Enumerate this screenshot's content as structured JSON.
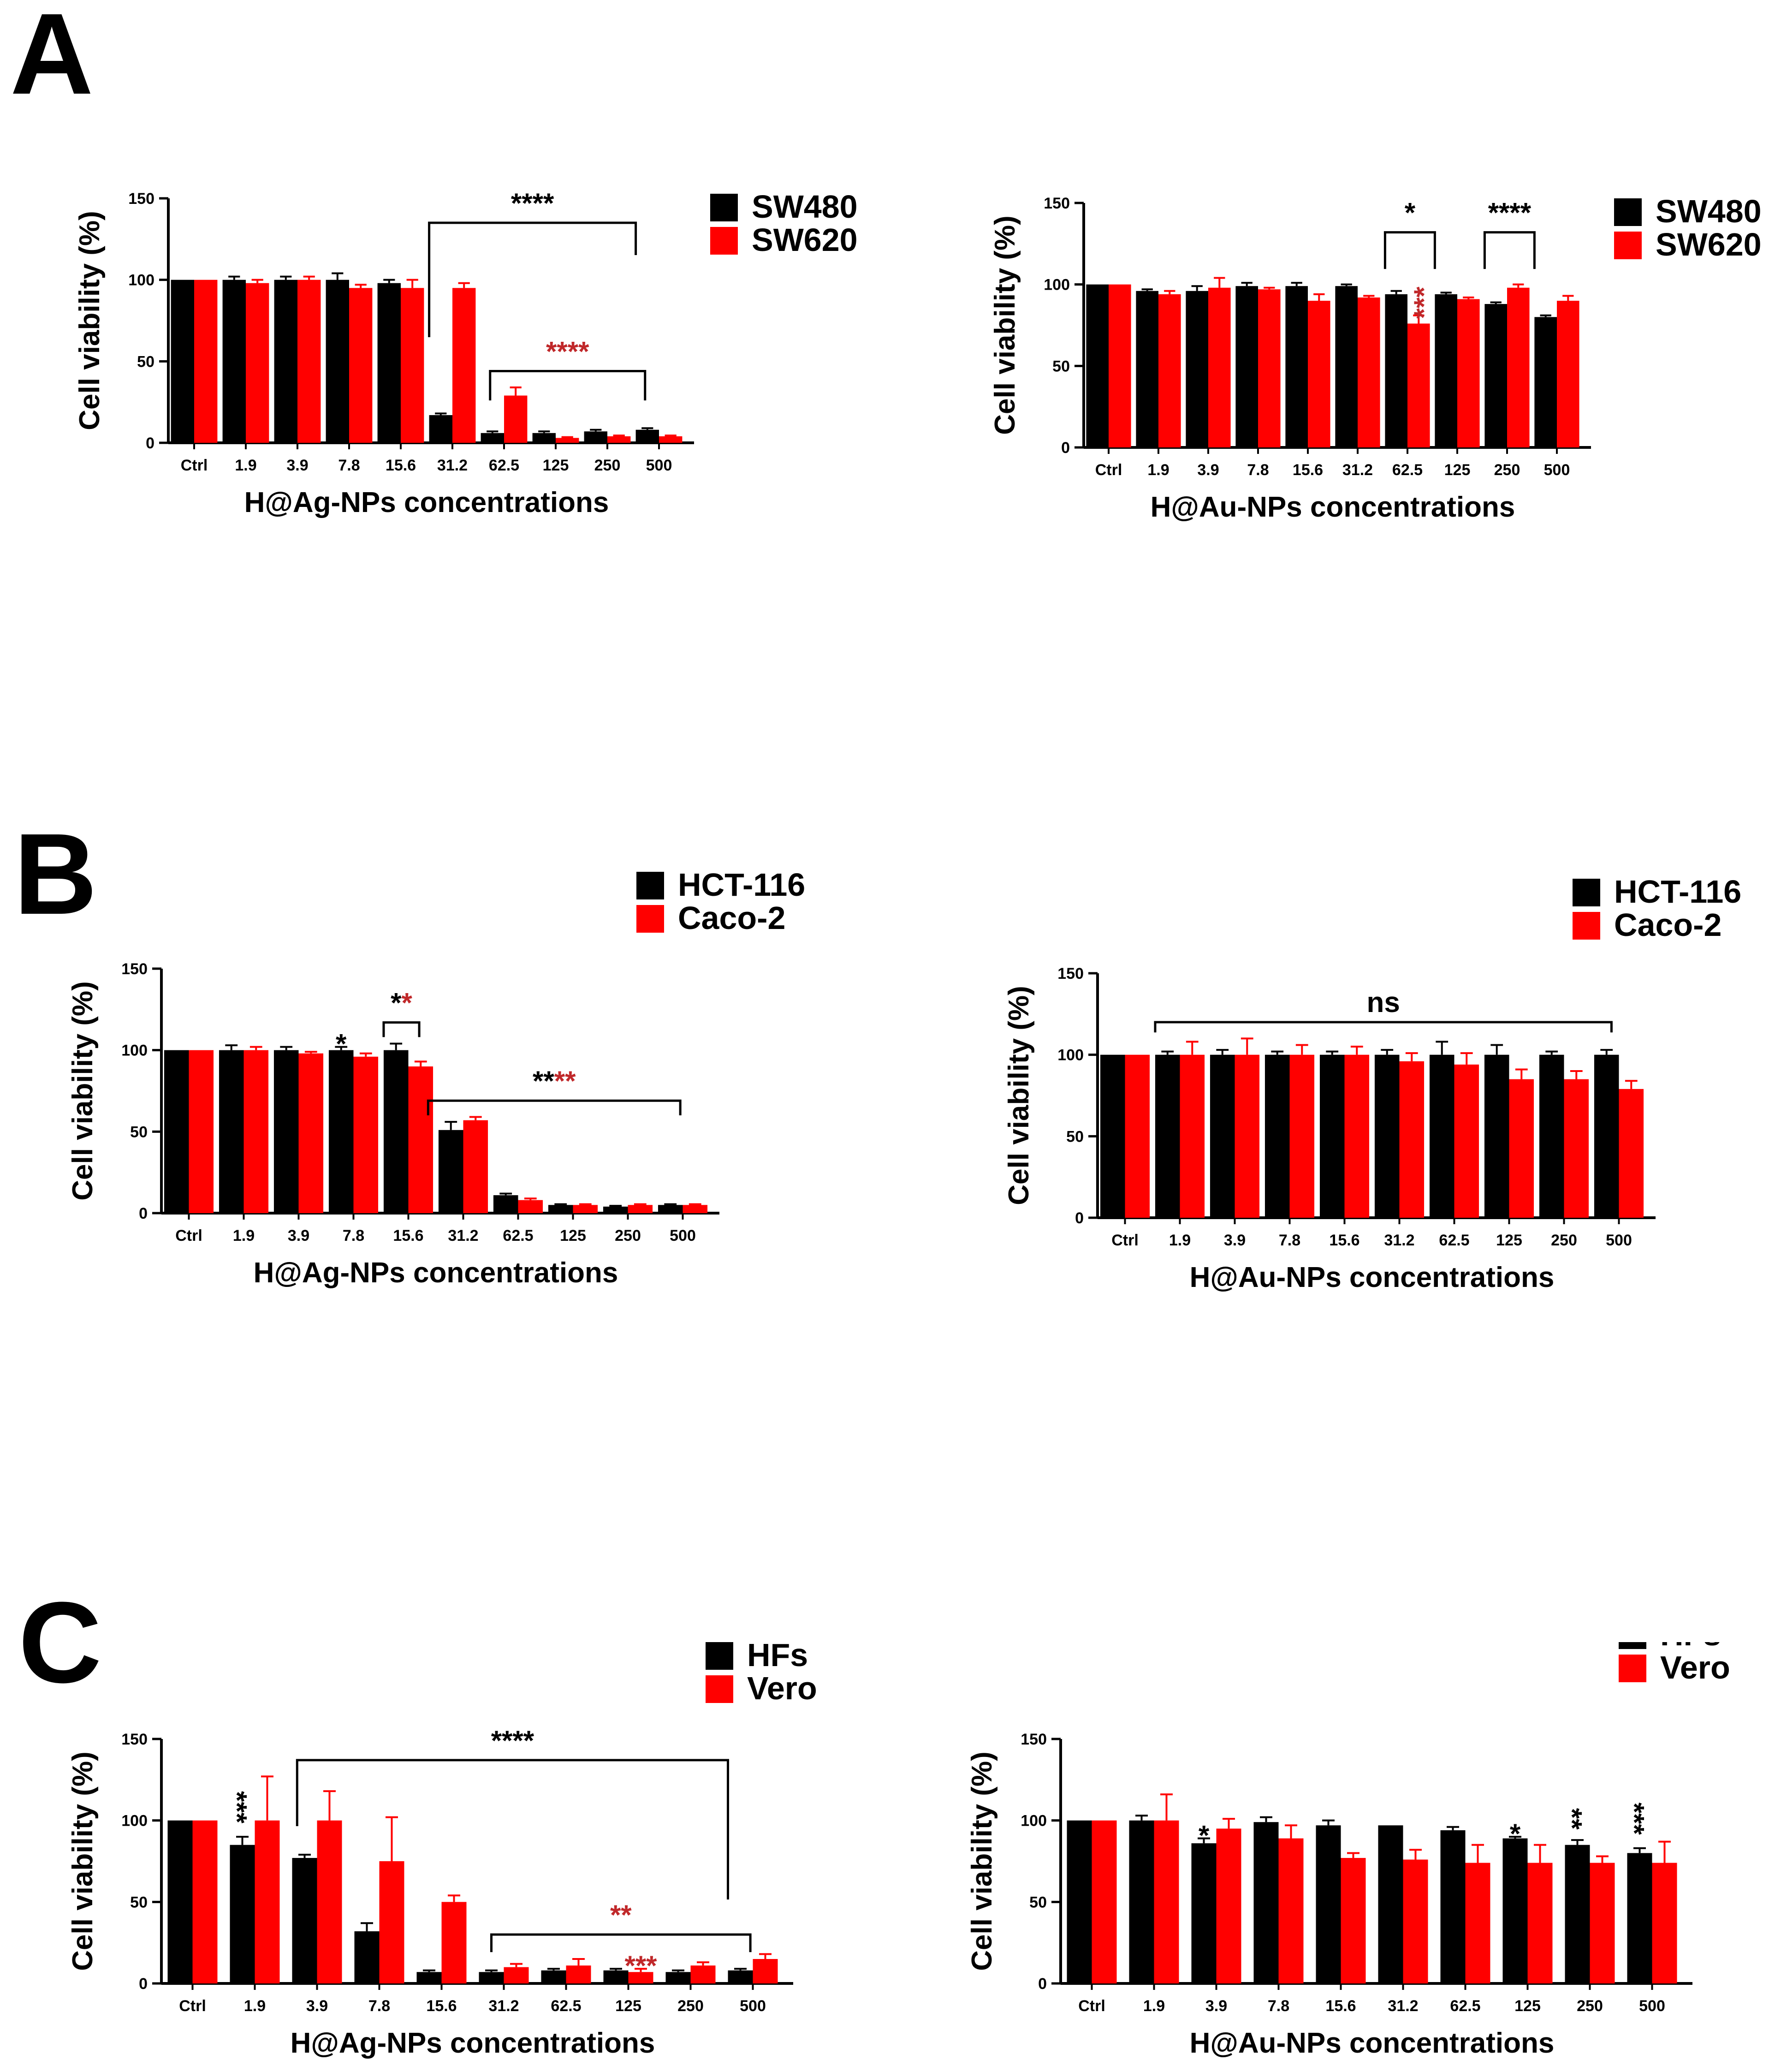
{
  "figure": {
    "panel_letters": [
      "A",
      "B",
      "C"
    ],
    "colors": {
      "series1": "#000000",
      "series2": "#ff0000",
      "sig_red": "#c0282a",
      "axis": "#000000"
    }
  },
  "chart_data": [
    {
      "type": "bar",
      "panel": "A",
      "position": "left",
      "title": "",
      "xlabel": "H@Ag-NPs concentrations",
      "ylabel": "Cell viability (%)",
      "ylim": [
        0,
        150
      ],
      "yticks": [
        0,
        50,
        100,
        150
      ],
      "categories": [
        "Ctrl",
        "1.9",
        "3.9",
        "7.8",
        "15.6",
        "31.2",
        "62.5",
        "125",
        "250",
        "500"
      ],
      "series": [
        {
          "name": "SW480",
          "color": "#000000",
          "values": [
            100,
            100,
            100,
            100,
            98,
            17,
            6,
            6,
            7,
            8
          ],
          "errors": [
            0,
            2,
            2,
            4,
            2,
            1,
            1,
            1,
            1,
            1
          ]
        },
        {
          "name": "SW620",
          "color": "#ff0000",
          "values": [
            100,
            98,
            100,
            95,
            95,
            95,
            29,
            3,
            4,
            4
          ],
          "errors": [
            0,
            2,
            2,
            2,
            5,
            3,
            5,
            0.5,
            0.5,
            0.5
          ]
        }
      ],
      "annotations": [
        {
          "type": "bracket",
          "text": "****",
          "color": "black",
          "from": 5,
          "to": 9,
          "level": 135,
          "drop_left": 0.78,
          "drop_right": 0.22
        },
        {
          "type": "bracket",
          "text": "****",
          "color": "red",
          "from": 6.2,
          "to": 9.2,
          "level": 44,
          "drop_left": 0.2,
          "drop_right": 0.2
        }
      ]
    },
    {
      "type": "bar",
      "panel": "A",
      "position": "right",
      "title": "",
      "xlabel": "H@Au-NPs concentrations",
      "ylabel": "Cell viability (%)",
      "ylim": [
        0,
        150
      ],
      "yticks": [
        0,
        50,
        100,
        150
      ],
      "categories": [
        "Ctrl",
        "1.9",
        "3.9",
        "7.8",
        "15.6",
        "31.2",
        "62.5",
        "125",
        "250",
        "500"
      ],
      "series": [
        {
          "name": "SW480",
          "color": "#000000",
          "values": [
            100,
            96,
            96,
            99,
            99,
            99,
            94,
            94,
            88,
            80
          ],
          "errors": [
            0,
            1,
            3,
            2,
            2,
            1,
            2,
            1,
            1,
            1
          ]
        },
        {
          "name": "SW620",
          "color": "#ff0000",
          "values": [
            100,
            94,
            98,
            97,
            90,
            92,
            76,
            91,
            98,
            90
          ],
          "errors": [
            0,
            2,
            6,
            1,
            4,
            1,
            5,
            1,
            2,
            3
          ]
        }
      ],
      "annotations": [
        {
          "type": "bracket",
          "text": "*",
          "color": "black",
          "from": 6,
          "to": 7,
          "level": 132,
          "drop_left": 0.25,
          "drop_right": 0.25
        },
        {
          "type": "bracket",
          "text": "****",
          "color": "black",
          "from": 8,
          "to": 9,
          "level": 132,
          "drop_left": 0.25,
          "drop_right": 0.25
        },
        {
          "type": "star",
          "text": "***",
          "color": "red",
          "group": 6,
          "series": 1,
          "rotate": -90
        }
      ]
    },
    {
      "type": "bar",
      "panel": "B",
      "position": "left",
      "title": "",
      "xlabel": "H@Ag-NPs concentrations",
      "ylabel": "Cell viability (%)",
      "ylim": [
        0,
        150
      ],
      "yticks": [
        0,
        50,
        100,
        150
      ],
      "categories": [
        "Ctrl",
        "1.9",
        "3.9",
        "7.8",
        "15.6",
        "31.2",
        "62.5",
        "125",
        "250",
        "500"
      ],
      "series": [
        {
          "name": "HCT-116",
          "color": "#000000",
          "values": [
            100,
            100,
            100,
            100,
            100,
            51,
            11,
            5,
            4,
            5
          ],
          "errors": [
            0,
            3,
            2,
            2,
            4,
            5,
            1,
            0.5,
            0.5,
            0.5
          ]
        },
        {
          "name": "Caco-2",
          "color": "#ff0000",
          "values": [
            100,
            100,
            98,
            96,
            90,
            57,
            8,
            5,
            5,
            5
          ],
          "errors": [
            0,
            2,
            1,
            2,
            3,
            2,
            1,
            0.5,
            0.5,
            0.5
          ]
        }
      ],
      "annotations": [
        {
          "type": "star",
          "text": "*",
          "color": "black",
          "group": 3,
          "series": 0
        },
        {
          "type": "bracket",
          "text": [
            {
              "t": "*",
              "c": "black"
            },
            {
              "t": "*",
              "c": "red"
            }
          ],
          "from": 4,
          "to": 4.72,
          "level": 117,
          "drop_left": 0.1,
          "drop_right": 0.1
        },
        {
          "type": "bracket",
          "text": [
            {
              "t": "**",
              "c": "black"
            },
            {
              "t": "**",
              "c": "red"
            }
          ],
          "from": 4.9,
          "to": 9.45,
          "level": 69,
          "drop_left": 0.1,
          "drop_right": 0.1
        }
      ]
    },
    {
      "type": "bar",
      "panel": "B",
      "position": "right",
      "title": "",
      "xlabel": "H@Au-NPs concentrations",
      "ylabel": "Cell viability (%)",
      "ylim": [
        0,
        150
      ],
      "yticks": [
        0,
        50,
        100,
        150
      ],
      "categories": [
        "Ctrl",
        "1.9",
        "3.9",
        "7.8",
        "15.6",
        "31.2",
        "62.5",
        "125",
        "250",
        "500"
      ],
      "series": [
        {
          "name": "HCT-116",
          "color": "#000000",
          "values": [
            100,
            100,
            100,
            100,
            100,
            100,
            100,
            100,
            100,
            100
          ],
          "errors": [
            0,
            2,
            3,
            2,
            2,
            3,
            8,
            6,
            2,
            3
          ]
        },
        {
          "name": "Caco-2",
          "color": "#ff0000",
          "values": [
            100,
            100,
            100,
            100,
            100,
            96,
            94,
            85,
            85,
            79
          ],
          "errors": [
            0,
            8,
            10,
            6,
            5,
            5,
            7,
            6,
            5,
            5
          ]
        }
      ],
      "annotations": [
        {
          "type": "bracket",
          "text": "ns",
          "color": "black",
          "from": 1,
          "to": 9.35,
          "level": 120,
          "drop_left": 0.07,
          "drop_right": 0.07
        }
      ]
    },
    {
      "type": "bar",
      "panel": "C",
      "position": "left",
      "title": "",
      "xlabel": "H@Ag-NPs concentrations",
      "ylabel": "Cell viability (%)",
      "ylim": [
        0,
        150
      ],
      "yticks": [
        0,
        50,
        100,
        150
      ],
      "categories": [
        "Ctrl",
        "1.9",
        "3.9",
        "7.8",
        "15.6",
        "31.2",
        "62.5",
        "125",
        "250",
        "500"
      ],
      "series": [
        {
          "name": "HFs",
          "color": "#000000",
          "values": [
            100,
            85,
            77,
            32,
            7,
            7,
            8,
            8,
            7,
            8
          ],
          "errors": [
            0,
            5,
            2,
            5,
            1,
            1,
            1,
            1,
            1,
            1
          ]
        },
        {
          "name": "Vero",
          "color": "#ff0000",
          "values": [
            100,
            100,
            100,
            75,
            50,
            10,
            11,
            7,
            11,
            15
          ],
          "errors": [
            0,
            27,
            18,
            27,
            4,
            2,
            4,
            2,
            2,
            3
          ]
        }
      ],
      "annotations": [
        {
          "type": "star",
          "text": "***",
          "color": "black",
          "group": 1,
          "series": 0,
          "rotate": 90
        },
        {
          "type": "bracket",
          "text": "****",
          "color": "black",
          "from": 2.1,
          "to": 9,
          "level": 137,
          "drop_left": 0.45,
          "drop_right": 0.95
        },
        {
          "type": "bracket",
          "text": "**",
          "color": "red",
          "from": 5.25,
          "to": 9.45,
          "level": 30,
          "drop_left": 0.12,
          "drop_right": 0.12
        },
        {
          "type": "star",
          "text": "***",
          "color": "red",
          "group": 7,
          "series": 1
        }
      ]
    },
    {
      "type": "bar",
      "panel": "C",
      "position": "right",
      "title": "",
      "xlabel": "H@Au-NPs concentrations",
      "ylabel": "Cell viability (%)",
      "ylim": [
        0,
        150
      ],
      "yticks": [
        0,
        50,
        100,
        150
      ],
      "categories": [
        "Ctrl",
        "1.9",
        "3.9",
        "7.8",
        "15.6",
        "31.2",
        "62.5",
        "125",
        "250",
        "500"
      ],
      "series": [
        {
          "name": "HFs",
          "color": "#000000",
          "values": [
            100,
            100,
            86,
            99,
            97,
            97,
            94,
            89,
            85,
            80
          ],
          "errors": [
            0,
            3,
            3,
            3,
            3,
            0,
            2,
            1,
            3,
            3
          ]
        },
        {
          "name": "Vero",
          "color": "#ff0000",
          "values": [
            100,
            100,
            95,
            89,
            77,
            76,
            74,
            74,
            74,
            74
          ],
          "errors": [
            0,
            16,
            6,
            8,
            3,
            6,
            11,
            11,
            4,
            13
          ]
        }
      ],
      "annotations": [
        {
          "type": "star",
          "text": "*",
          "color": "black",
          "group": 2,
          "series": 0
        },
        {
          "type": "star",
          "text": "*",
          "color": "black",
          "group": 7,
          "series": 0
        },
        {
          "type": "star",
          "text": "**",
          "color": "black",
          "group": 8,
          "series": 0,
          "rotate": 90
        },
        {
          "type": "star",
          "text": "***",
          "color": "black",
          "group": 9,
          "series": 0,
          "rotate": 90
        }
      ]
    }
  ]
}
